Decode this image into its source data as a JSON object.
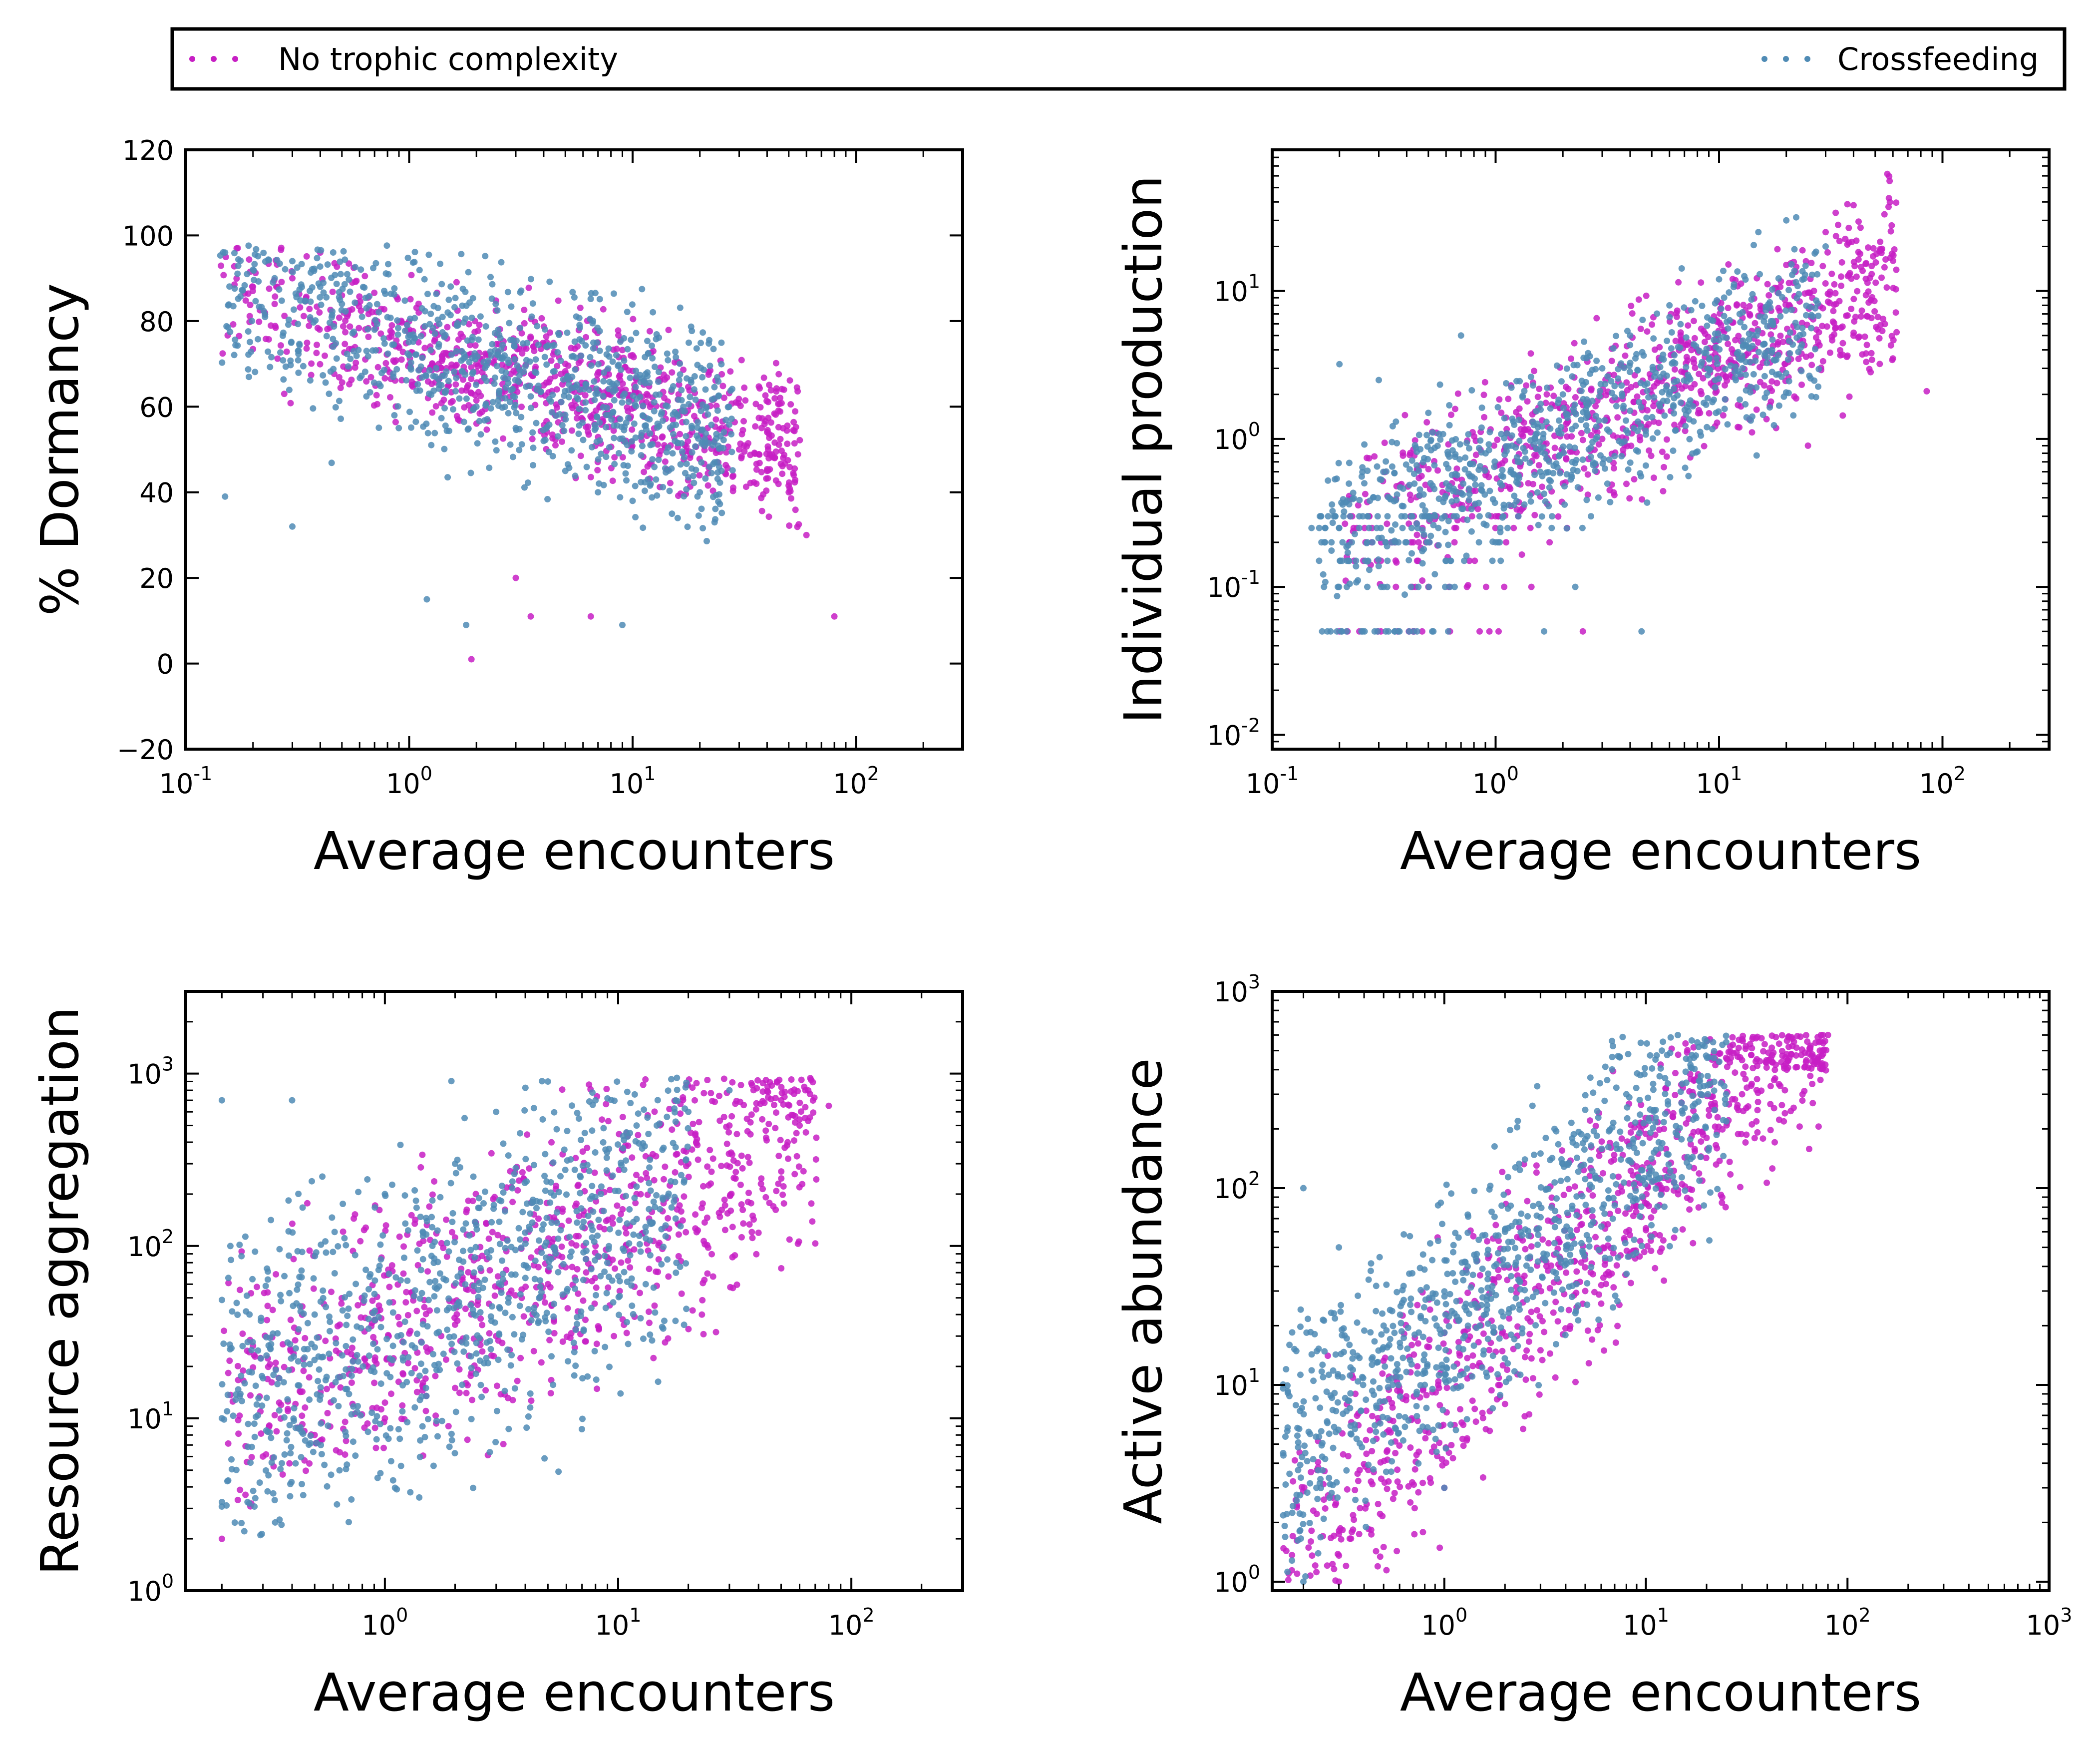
{
  "legend": {
    "entries": [
      {
        "label": "No trophic complexity",
        "color": "#c71fc4"
      },
      {
        "label": "Crossfeeding",
        "color": "#4f8bb5"
      }
    ]
  },
  "chart_data": [
    {
      "type": "scatter",
      "id": "dormancy",
      "xlabel": "Average encounters",
      "ylabel": "% Dormancy",
      "xscale": "log",
      "yscale": "linear",
      "xlim": [
        0.1,
        300
      ],
      "ylim": [
        -20,
        120
      ],
      "xticks": [
        {
          "v": 0.1,
          "base": "10",
          "exp": "-1"
        },
        {
          "v": 1,
          "base": "10",
          "exp": "0"
        },
        {
          "v": 10,
          "base": "10",
          "exp": "1"
        },
        {
          "v": 100,
          "base": "10",
          "exp": "2"
        }
      ],
      "yticks": [
        {
          "v": -20,
          "t": "−20"
        },
        {
          "v": 0,
          "t": "0"
        },
        {
          "v": 20,
          "t": "20"
        },
        {
          "v": 40,
          "t": "40"
        },
        {
          "v": 60,
          "t": "60"
        },
        {
          "v": 80,
          "t": "80"
        },
        {
          "v": 100,
          "t": "100"
        },
        {
          "v": 120,
          "t": "120"
        }
      ],
      "series": [
        {
          "name": "No trophic complexity",
          "points": [
            [
              0.2,
              88
            ],
            [
              0.25,
              84
            ],
            [
              0.3,
              90
            ],
            [
              0.4,
              96
            ],
            [
              0.5,
              86
            ],
            [
              0.7,
              80
            ],
            [
              1.0,
              78
            ],
            [
              1.5,
              72
            ],
            [
              2.0,
              70
            ],
            [
              3.0,
              68
            ],
            [
              4.0,
              65
            ],
            [
              5.0,
              70
            ],
            [
              7.0,
              75
            ],
            [
              10.0,
              72
            ],
            [
              15.0,
              68
            ],
            [
              20.0,
              60
            ],
            [
              25.0,
              55
            ],
            [
              30.0,
              50
            ],
            [
              40.0,
              45
            ],
            [
              50.0,
              40
            ],
            [
              60.0,
              30
            ],
            [
              80.0,
              11
            ],
            [
              1.9,
              1
            ],
            [
              3.5,
              11
            ],
            [
              6.5,
              11
            ],
            [
              3.0,
              20
            ]
          ]
        },
        {
          "name": "Crossfeeding",
          "points": [
            [
              0.15,
              96
            ],
            [
              0.2,
              92
            ],
            [
              0.25,
              90
            ],
            [
              0.3,
              94
            ],
            [
              0.4,
              88
            ],
            [
              0.5,
              84
            ],
            [
              0.7,
              78
            ],
            [
              1.0,
              72
            ],
            [
              1.5,
              66
            ],
            [
              2.0,
              60
            ],
            [
              3.0,
              55
            ],
            [
              4.0,
              52
            ],
            [
              5.0,
              45
            ],
            [
              7.0,
              40
            ],
            [
              10.0,
              38
            ],
            [
              15.0,
              35
            ],
            [
              20.0,
              40
            ],
            [
              25.0,
              45
            ],
            [
              1.2,
              15
            ],
            [
              1.8,
              9
            ],
            [
              9.0,
              9
            ],
            [
              0.15,
              39
            ],
            [
              0.3,
              32
            ]
          ]
        }
      ]
    },
    {
      "type": "scatter",
      "id": "production",
      "xlabel": "Average encounters",
      "ylabel": "Individual production",
      "xscale": "log",
      "yscale": "log",
      "xlim": [
        0.1,
        300
      ],
      "ylim": [
        0.008,
        90
      ],
      "xticks": [
        {
          "v": 0.1,
          "base": "10",
          "exp": "-1"
        },
        {
          "v": 1,
          "base": "10",
          "exp": "0"
        },
        {
          "v": 10,
          "base": "10",
          "exp": "1"
        },
        {
          "v": 100,
          "base": "10",
          "exp": "2"
        }
      ],
      "yticks": [
        {
          "v": 0.01,
          "base": "10",
          "exp": "-2"
        },
        {
          "v": 0.1,
          "base": "10",
          "exp": "-1"
        },
        {
          "v": 1,
          "base": "10",
          "exp": "0"
        },
        {
          "v": 10,
          "base": "10",
          "exp": "1"
        }
      ],
      "series": [
        {
          "name": "No trophic complexity",
          "points": [
            [
              0.2,
              0.05
            ],
            [
              0.5,
              0.1
            ],
            [
              1.0,
              0.3
            ],
            [
              2.0,
              0.5
            ],
            [
              3.0,
              1.0
            ],
            [
              5.0,
              2.0
            ],
            [
              8.0,
              4.0
            ],
            [
              12.0,
              8.0
            ],
            [
              20.0,
              15.0
            ],
            [
              30.0,
              25.0
            ],
            [
              40.0,
              38.0
            ],
            [
              55.0,
              33.0
            ],
            [
              60.0,
              3.5
            ],
            [
              85.0,
              2.1
            ],
            [
              25.0,
              0.9
            ]
          ]
        },
        {
          "name": "Crossfeeding",
          "points": [
            [
              0.15,
              0.25
            ],
            [
              0.2,
              3.2
            ],
            [
              0.3,
              2.5
            ],
            [
              0.5,
              1.5
            ],
            [
              0.7,
              5.0
            ],
            [
              1.0,
              0.2
            ],
            [
              1.5,
              1.0
            ],
            [
              2.0,
              2.0
            ],
            [
              3.0,
              3.0
            ],
            [
              4.0,
              5.0
            ],
            [
              6.0,
              8.0
            ],
            [
              10.0,
              12.0
            ],
            [
              15.0,
              25.0
            ],
            [
              20.0,
              30.0
            ],
            [
              30.0,
              20.0
            ],
            [
              4.5,
              0.05
            ]
          ]
        }
      ]
    },
    {
      "type": "scatter",
      "id": "aggregation",
      "xlabel": "Average encounters",
      "ylabel": "Resource aggregation",
      "xscale": "log",
      "yscale": "log",
      "xlim": [
        0.14,
        300
      ],
      "ylim": [
        1,
        3000
      ],
      "xticks": [
        {
          "v": 1,
          "base": "10",
          "exp": "0"
        },
        {
          "v": 10,
          "base": "10",
          "exp": "1"
        },
        {
          "v": 100,
          "base": "10",
          "exp": "2"
        }
      ],
      "yticks": [
        {
          "v": 1,
          "base": "10",
          "exp": "0"
        },
        {
          "v": 10,
          "base": "10",
          "exp": "1"
        },
        {
          "v": 100,
          "base": "10",
          "exp": "2"
        },
        {
          "v": 1000,
          "base": "10",
          "exp": "3"
        }
      ],
      "series": [
        {
          "name": "No trophic complexity",
          "points": [
            [
              0.2,
              2
            ],
            [
              0.3,
              6
            ],
            [
              0.5,
              8
            ],
            [
              1.0,
              10
            ],
            [
              2.0,
              15
            ],
            [
              3.0,
              30
            ],
            [
              5.0,
              60
            ],
            [
              8.0,
              100
            ],
            [
              12.0,
              200
            ],
            [
              20.0,
              300
            ],
            [
              30.0,
              500
            ],
            [
              50.0,
              700
            ],
            [
              80.0,
              650
            ],
            [
              60.0,
              500
            ]
          ]
        },
        {
          "name": "Crossfeeding",
          "points": [
            [
              0.2,
              700
            ],
            [
              0.2,
              10
            ],
            [
              0.4,
              700
            ],
            [
              0.7,
              2.5
            ],
            [
              0.5,
              40
            ],
            [
              1.0,
              200
            ],
            [
              1.5,
              15
            ],
            [
              2.0,
              300
            ],
            [
              3.0,
              600
            ],
            [
              5.0,
              900
            ],
            [
              8.0,
              700
            ],
            [
              12.0,
              500
            ],
            [
              20.0,
              600
            ],
            [
              30.0,
              800
            ]
          ]
        }
      ]
    },
    {
      "type": "scatter",
      "id": "abundance",
      "xlabel": "Average encounters",
      "ylabel": "Active abundance",
      "xscale": "log",
      "yscale": "log",
      "xlim": [
        0.14,
        1000
      ],
      "ylim": [
        0.9,
        1000
      ],
      "xticks": [
        {
          "v": 1,
          "base": "10",
          "exp": "0"
        },
        {
          "v": 10,
          "base": "10",
          "exp": "1"
        },
        {
          "v": 100,
          "base": "10",
          "exp": "2"
        },
        {
          "v": 1000,
          "base": "10",
          "exp": "3"
        }
      ],
      "yticks": [
        {
          "v": 1,
          "base": "10",
          "exp": "0"
        },
        {
          "v": 10,
          "base": "10",
          "exp": "1"
        },
        {
          "v": 100,
          "base": "10",
          "exp": "2"
        },
        {
          "v": 1000,
          "base": "10",
          "exp": "3"
        }
      ],
      "series": [
        {
          "name": "No trophic complexity",
          "points": [
            [
              0.3,
              1
            ],
            [
              0.5,
              1.5
            ],
            [
              1.0,
              3
            ],
            [
              2.0,
              8
            ],
            [
              3.0,
              15
            ],
            [
              5.0,
              30
            ],
            [
              8.0,
              60
            ],
            [
              12.0,
              100
            ],
            [
              20.0,
              180
            ],
            [
              30.0,
              300
            ],
            [
              50.0,
              400
            ],
            [
              80.0,
              600
            ]
          ]
        },
        {
          "name": "Crossfeeding",
          "points": [
            [
              0.2,
              100
            ],
            [
              0.2,
              1
            ],
            [
              0.3,
              50
            ],
            [
              0.5,
              20
            ],
            [
              0.8,
              10
            ],
            [
              1.0,
              3
            ],
            [
              1.5,
              20
            ],
            [
              2.0,
              60
            ],
            [
              3.0,
              150
            ],
            [
              5.0,
              250
            ],
            [
              8.0,
              300
            ],
            [
              12.0,
              500
            ],
            [
              18.0,
              550
            ],
            [
              25.0,
              300
            ]
          ]
        }
      ]
    }
  ]
}
